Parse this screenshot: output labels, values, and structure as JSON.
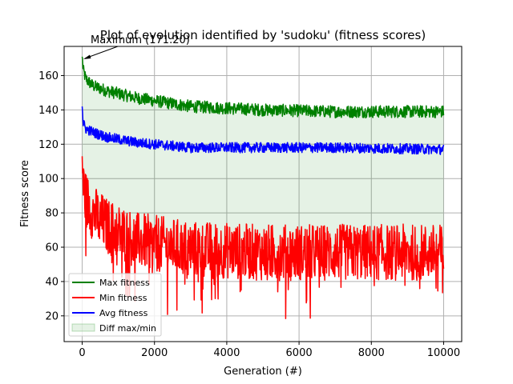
{
  "chart_data": {
    "type": "line",
    "title": "Plot of evolution identified by 'sudoku' (fitness scores)",
    "xlabel": "Generation (#)",
    "ylabel": "Fitness score",
    "xlim": [
      -500,
      10500
    ],
    "ylim": [
      5,
      177
    ],
    "xticks": [
      0,
      2000,
      4000,
      6000,
      8000,
      10000
    ],
    "xtick_labels": [
      "0",
      "2000",
      "4000",
      "6000",
      "8000",
      "10000"
    ],
    "yticks": [
      20,
      40,
      60,
      80,
      100,
      120,
      140,
      160
    ],
    "ytick_labels": [
      "20",
      "40",
      "60",
      "80",
      "100",
      "120",
      "140",
      "160"
    ],
    "grid": true,
    "legend_position": "lower-left",
    "annotation": {
      "text": "Maximum (171.20)",
      "x": 0,
      "y": 171.2
    },
    "series": [
      {
        "name": "Max fitness",
        "color": "#008000",
        "shape": [
          [
            0,
            171
          ],
          [
            30,
            163
          ],
          [
            100,
            158
          ],
          [
            300,
            154
          ],
          [
            700,
            151
          ],
          [
            1500,
            147
          ],
          [
            3000,
            142
          ],
          [
            5000,
            140
          ],
          [
            7000,
            139
          ],
          [
            10000,
            139
          ]
        ],
        "noise": 6
      },
      {
        "name": "Min fitness",
        "color": "#ff0000",
        "shape": [
          [
            0,
            113
          ],
          [
            30,
            96
          ],
          [
            100,
            88
          ],
          [
            300,
            80
          ],
          [
            700,
            72
          ],
          [
            1500,
            64
          ],
          [
            3000,
            59
          ],
          [
            5000,
            57
          ],
          [
            7000,
            57
          ],
          [
            10000,
            57
          ]
        ],
        "noise": 30
      },
      {
        "name": "Avg fitness",
        "color": "#0000ff",
        "shape": [
          [
            0,
            142
          ],
          [
            30,
            132
          ],
          [
            100,
            129
          ],
          [
            300,
            127
          ],
          [
            700,
            124
          ],
          [
            1500,
            121
          ],
          [
            3000,
            118
          ],
          [
            5000,
            118
          ],
          [
            7000,
            118
          ],
          [
            10000,
            117
          ]
        ],
        "noise": 5
      }
    ],
    "fill_between": {
      "name": "Diff max/min",
      "color": "#008000",
      "opacity": 0.1
    }
  }
}
